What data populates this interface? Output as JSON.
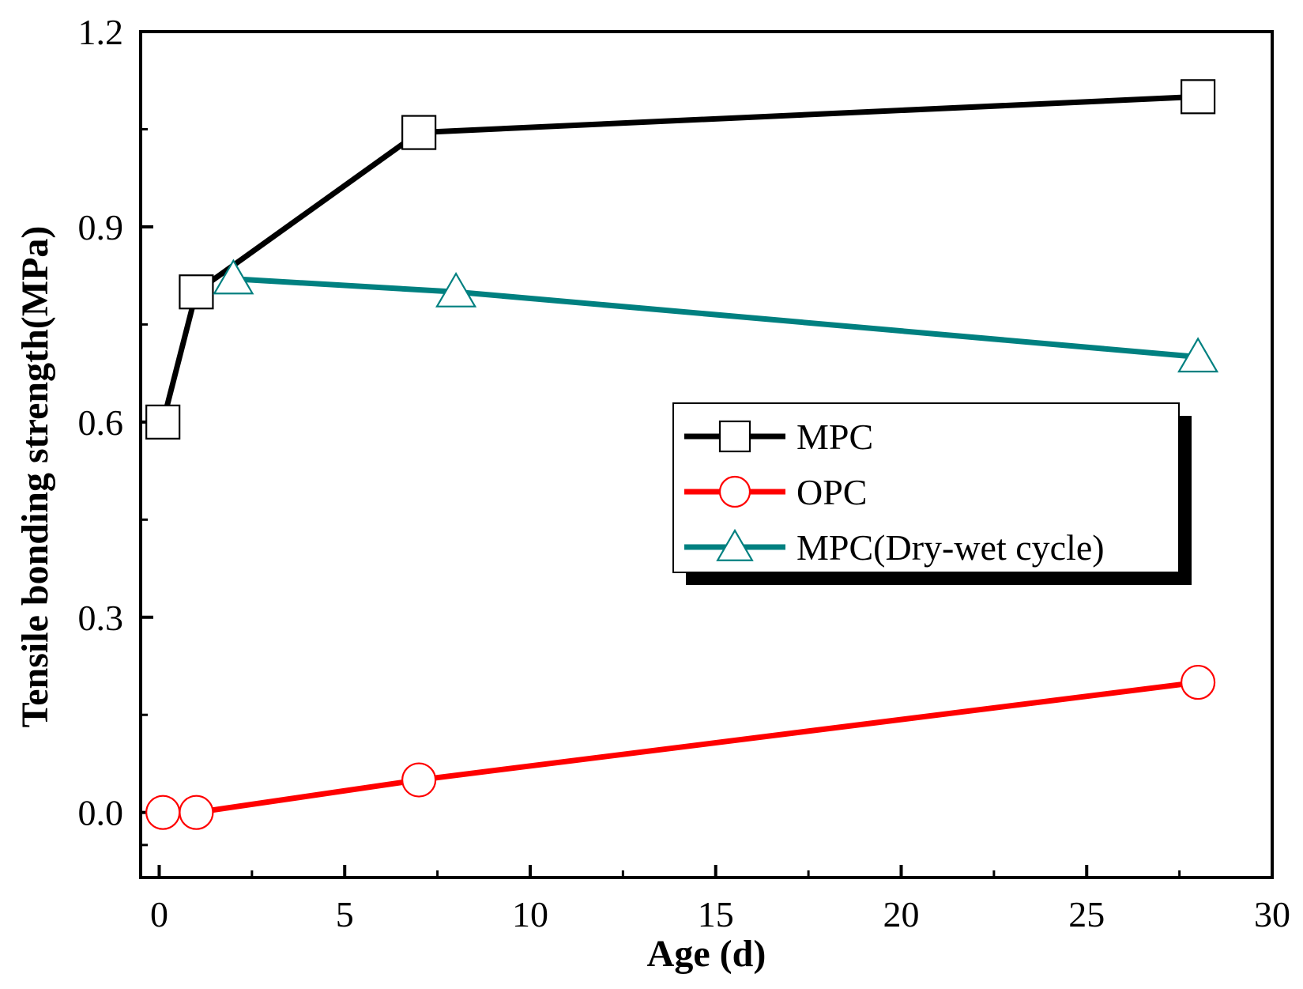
{
  "chart_data": {
    "type": "line",
    "title": "",
    "xlabel": "Age (d)",
    "ylabel": "Tensile bonding strength(MPa)",
    "xlim": [
      -0.5,
      30
    ],
    "ylim": [
      -0.1,
      1.2
    ],
    "x_ticks": [
      0,
      5,
      10,
      15,
      20,
      25,
      30
    ],
    "x_tick_labels": [
      "0",
      "5",
      "10",
      "15",
      "20",
      "25",
      "30"
    ],
    "y_ticks": [
      0.0,
      0.3,
      0.6,
      0.9,
      1.2
    ],
    "y_tick_labels": [
      "0.0",
      "0.3",
      "0.6",
      "0.9",
      "1.2"
    ],
    "grid": false,
    "legend_position": "center-right",
    "series": [
      {
        "name": "MPC",
        "color": "#000000",
        "marker": "square",
        "x": [
          0.1,
          1,
          7,
          28
        ],
        "y": [
          0.6,
          0.8,
          1.045,
          1.1
        ]
      },
      {
        "name": "OPC",
        "color": "#ff0000",
        "marker": "circle",
        "x": [
          0.1,
          1,
          7,
          28
        ],
        "y": [
          0.0,
          0.0,
          0.05,
          0.2
        ]
      },
      {
        "name": "MPC(Dry-wet cycle)",
        "color": "#008080",
        "marker": "triangle",
        "x": [
          2,
          8,
          28
        ],
        "y": [
          0.82,
          0.8,
          0.7
        ]
      }
    ]
  }
}
